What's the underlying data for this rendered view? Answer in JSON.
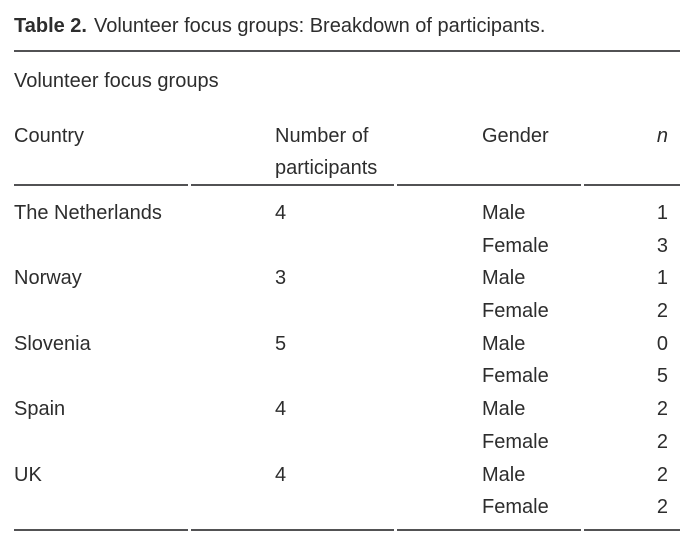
{
  "title": {
    "label": "Table 2.",
    "text": "Volunteer focus groups: Breakdown of participants."
  },
  "table": {
    "group_header": "Volunteer focus groups",
    "columns": [
      "Country",
      "Number of participants",
      "Gender",
      "n"
    ],
    "rows": [
      {
        "country": "The Netherlands",
        "participants": "4",
        "gender": "Male",
        "n": "1"
      },
      {
        "country": "",
        "participants": "",
        "gender": "Female",
        "n": "3"
      },
      {
        "country": "Norway",
        "participants": "3",
        "gender": "Male",
        "n": "1"
      },
      {
        "country": "",
        "participants": "",
        "gender": "Female",
        "n": "2"
      },
      {
        "country": "Slovenia",
        "participants": "5",
        "gender": "Male",
        "n": "0"
      },
      {
        "country": "",
        "participants": "",
        "gender": "Female",
        "n": "5"
      },
      {
        "country": "Spain",
        "participants": "4",
        "gender": "Male",
        "n": "2"
      },
      {
        "country": "",
        "participants": "",
        "gender": "Female",
        "n": "2"
      },
      {
        "country": "UK",
        "participants": "4",
        "gender": "Male",
        "n": "2"
      },
      {
        "country": "",
        "participants": "",
        "gender": "Female",
        "n": "2"
      }
    ]
  },
  "colors": {
    "text": "#2d2d2d",
    "rule": "#525254",
    "background": "#ffffff"
  }
}
